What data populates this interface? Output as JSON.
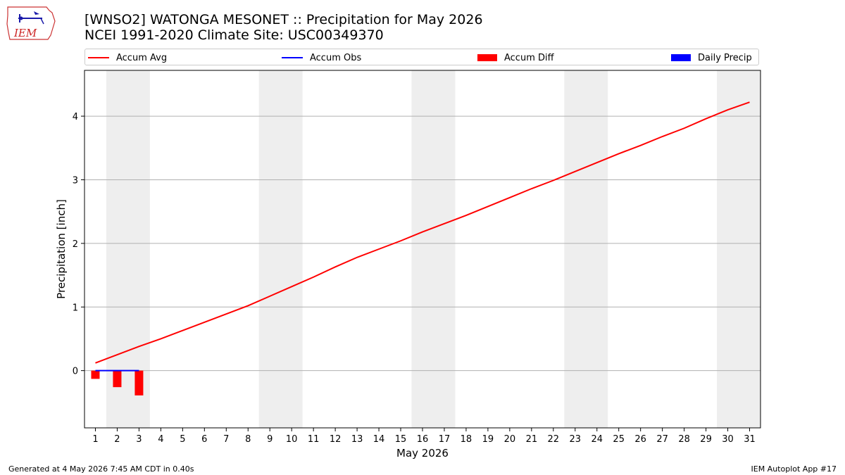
{
  "header": {
    "title": "[WNSO2] WATONGA MESONET :: Precipitation for May 2026",
    "subtitle": "NCEI 1991-2020 Climate Site: USC00349370"
  },
  "logo": {
    "text": "IEM"
  },
  "footer": {
    "generated": "Generated at 4 May 2026 7:45 AM CDT in 0.40s",
    "app": "IEM Autoplot App #17"
  },
  "colors": {
    "avg": "#ff0000",
    "obs": "#0000ff",
    "diff": "#ff0000",
    "daily": "#0000ff",
    "weekend": "#eeeeee",
    "grid": "#b0b0b0"
  },
  "chart_data": {
    "type": "line",
    "xlabel": "May 2026",
    "ylabel": "Precipitation [inch]",
    "xlim": [
      0.5,
      31.5
    ],
    "ylim": [
      -0.9,
      4.72
    ],
    "yticks": [
      0,
      1,
      2,
      3,
      4
    ],
    "x": [
      1,
      2,
      3,
      4,
      5,
      6,
      7,
      8,
      9,
      10,
      11,
      12,
      13,
      14,
      15,
      16,
      17,
      18,
      19,
      20,
      21,
      22,
      23,
      24,
      25,
      26,
      27,
      28,
      29,
      30,
      31
    ],
    "legend": [
      {
        "key": "avg",
        "label": "Accum Avg",
        "kind": "line"
      },
      {
        "key": "obs",
        "label": "Accum Obs",
        "kind": "line"
      },
      {
        "key": "diff",
        "label": "Accum Diff",
        "kind": "bar"
      },
      {
        "key": "daily",
        "label": "Daily Precip",
        "kind": "bar"
      }
    ],
    "weekend_days": [
      [
        2,
        3
      ],
      [
        9,
        10
      ],
      [
        16,
        17
      ],
      [
        23,
        24
      ],
      [
        30,
        31
      ]
    ],
    "series": [
      {
        "name": "Accum Avg",
        "type": "line",
        "values": [
          0.12,
          0.25,
          0.38,
          0.5,
          0.63,
          0.76,
          0.89,
          1.02,
          1.17,
          1.32,
          1.47,
          1.63,
          1.78,
          1.91,
          2.04,
          2.18,
          2.31,
          2.44,
          2.58,
          2.72,
          2.86,
          2.99,
          3.13,
          3.27,
          3.41,
          3.54,
          3.68,
          3.81,
          3.96,
          4.1,
          4.22
        ]
      },
      {
        "name": "Accum Obs",
        "type": "line",
        "x": [
          1,
          2,
          3
        ],
        "values": [
          0.0,
          0.0,
          0.0
        ]
      },
      {
        "name": "Accum Diff",
        "type": "bar",
        "x": [
          1,
          2,
          3
        ],
        "values": [
          -0.13,
          -0.26,
          -0.39
        ]
      },
      {
        "name": "Daily Precip",
        "type": "bar",
        "x": [
          1,
          2,
          3
        ],
        "values": [
          0.0,
          0.0,
          0.0
        ]
      }
    ]
  }
}
